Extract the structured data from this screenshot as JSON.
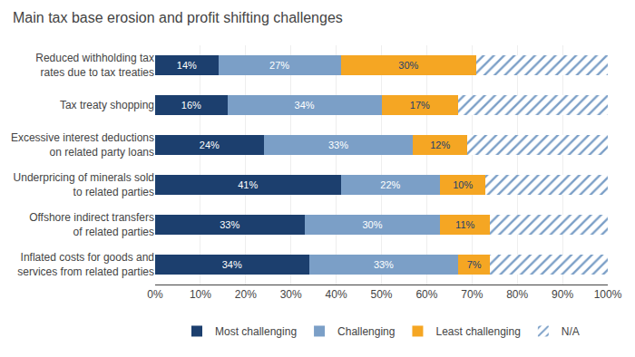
{
  "chart_data": {
    "type": "bar",
    "orientation": "horizontal",
    "stacked": true,
    "title": "Main tax base erosion and profit shifting challenges",
    "categories": [
      "Reduced withholding tax\nrates due to tax treaties",
      "Tax treaty shopping",
      "Excessive interest deductions\non related party loans",
      "Underpricing of minerals sold\nto related parties",
      "Offshore indirect transfers\nof related parties",
      "Inflated costs for goods and\nservices from related parties"
    ],
    "series": [
      {
        "name": "Most challenging",
        "color": "#1c3f6e",
        "data_labels": true,
        "values": [
          14,
          16,
          24,
          41,
          33,
          34
        ],
        "value_labels": [
          "14%",
          "16%",
          "24%",
          "41%",
          "33%",
          "34%"
        ]
      },
      {
        "name": "Challenging",
        "color": "#7b9fc7",
        "data_labels": true,
        "values": [
          27,
          34,
          33,
          22,
          30,
          33
        ],
        "value_labels": [
          "27%",
          "34%",
          "33%",
          "22%",
          "30%",
          "33%"
        ]
      },
      {
        "name": "Least challenging",
        "color": "#f5a623",
        "data_labels": true,
        "values": [
          30,
          17,
          12,
          10,
          11,
          7
        ],
        "value_labels": [
          "30%",
          "17%",
          "12%",
          "10%",
          "11%",
          "7%"
        ]
      },
      {
        "name": "N/A",
        "color": "#7b9fc7",
        "marker": "hatch",
        "data_labels": false,
        "values": [
          29,
          33,
          31,
          27,
          26,
          26
        ]
      }
    ],
    "xlim": [
      0,
      100
    ],
    "xticks": [
      {
        "value": 0,
        "label": "0%"
      },
      {
        "value": 10,
        "label": "10%"
      },
      {
        "value": 20,
        "label": "20%"
      },
      {
        "value": 30,
        "label": "30%"
      },
      {
        "value": 40,
        "label": "40%"
      },
      {
        "value": 50,
        "label": "50%"
      },
      {
        "value": 60,
        "label": "60%"
      },
      {
        "value": 70,
        "label": "70%"
      },
      {
        "value": 80,
        "label": "80%"
      },
      {
        "value": 90,
        "label": "90%"
      },
      {
        "value": 100,
        "label": "100%"
      }
    ],
    "grid": true,
    "legend": "bottom"
  }
}
